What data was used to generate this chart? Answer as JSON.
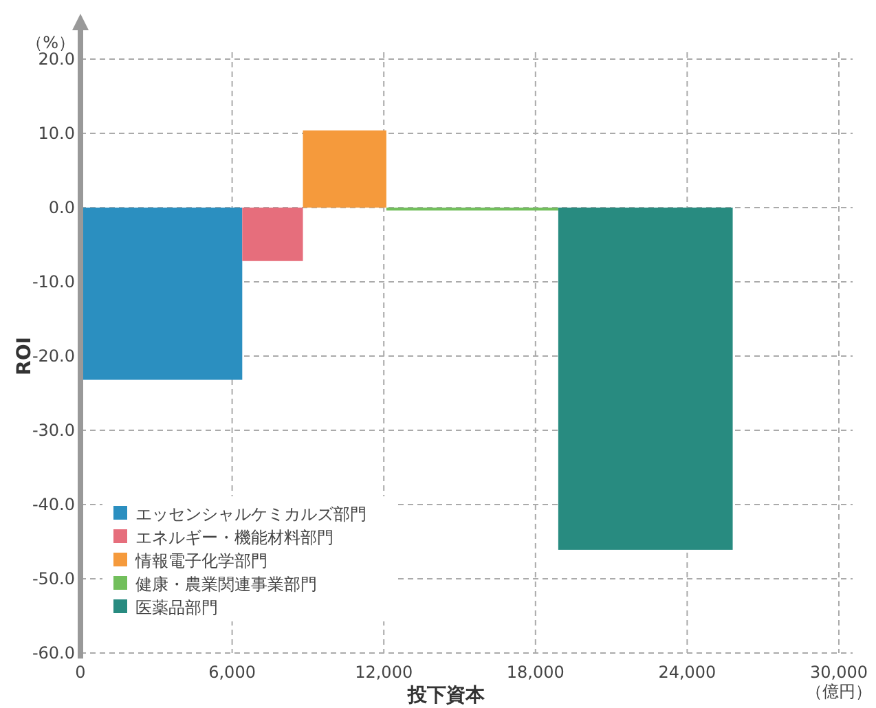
{
  "chart_data": {
    "type": "histogram",
    "xlabel": "投下資本",
    "ylabel": "ROI",
    "annotations": [
      "（%）",
      "（億円）"
    ],
    "bins": [
      0,
      6400,
      8800,
      12100,
      18900,
      25800
    ],
    "series": [
      {
        "name": "エッセンシャルケミカルズ部門",
        "color": "#2b8fc0",
        "values": [
          -23.2,
          null,
          null,
          null,
          null
        ]
      },
      {
        "name": "エネルギー・機能材料部門",
        "color": "#e66e7c",
        "values": [
          null,
          -7.2,
          null,
          null,
          null
        ]
      },
      {
        "name": "情報電子化学部門",
        "color": "#f59a3c",
        "values": [
          null,
          null,
          10.4,
          null,
          null
        ]
      },
      {
        "name": "健康・農業関連事業部門",
        "color": "#72bf5c",
        "values": [
          null,
          null,
          null,
          -0.4,
          null
        ]
      },
      {
        "name": "医薬品部門",
        "color": "#288b80",
        "values": [
          null,
          null,
          null,
          null,
          -46.1
        ]
      }
    ],
    "xlim": [
      0,
      30000
    ],
    "ylim": [
      -60,
      20
    ],
    "xticks": [
      0,
      {
        "value": 6000,
        "label": "6,000"
      },
      {
        "value": 12000,
        "label": "12,000"
      },
      {
        "value": 18000,
        "label": "18,000"
      },
      {
        "value": 24000,
        "label": "24,000"
      },
      {
        "value": 30000,
        "label": "30,000"
      }
    ],
    "yticks": [
      {
        "value": 20,
        "label": "20.0"
      },
      {
        "value": 10,
        "label": "10.0"
      },
      {
        "value": 0,
        "label": "0.0"
      },
      {
        "value": -10,
        "label": "-10.0"
      },
      {
        "value": -20,
        "label": "-20.0"
      },
      {
        "value": -30,
        "label": "-30.0"
      },
      {
        "value": -40,
        "label": "-40.0"
      },
      {
        "value": -50,
        "label": "-50.0"
      },
      {
        "value": -60,
        "label": "-60.0"
      }
    ],
    "grid": true,
    "legend": "bottom left"
  }
}
